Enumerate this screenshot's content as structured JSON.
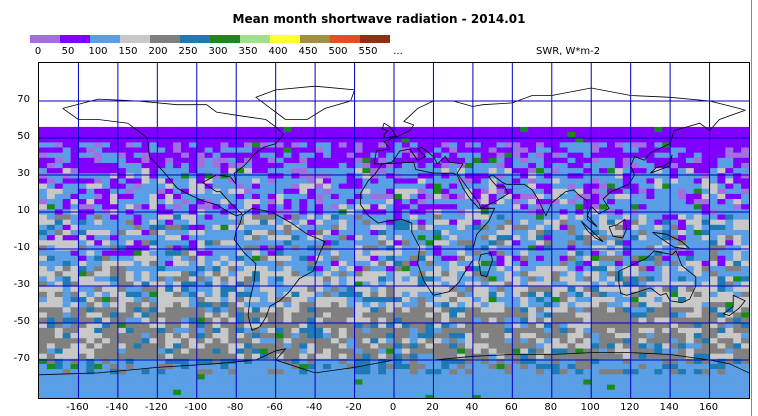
{
  "title": "Mean month shortwave radiation - 2014.01",
  "legend": {
    "units": "SWR, W*m-2",
    "labels": [
      "0",
      "50",
      "100",
      "150",
      "200",
      "250",
      "300",
      "350",
      "400",
      "450",
      "500",
      "550",
      "..."
    ],
    "colors": [
      "#a070e0",
      "#8000ff",
      "#5a9ee6",
      "#c8c8c8",
      "#808080",
      "#1e7ab4",
      "#1a8a1a",
      "#a0e088",
      "#ffff30",
      "#a09040",
      "#e05020",
      "#903010"
    ]
  },
  "map": {
    "y_ticks": [
      "70",
      "50",
      "30",
      "10",
      "-10",
      "-30",
      "-50",
      "-70"
    ],
    "x_ticks": [
      "-160",
      "-140",
      "-120",
      "-100",
      "-80",
      "-60",
      "-40",
      "-20",
      "0",
      "20",
      "40",
      "60",
      "80",
      "100",
      "120",
      "140",
      "160"
    ],
    "grid_color": "#0000c0"
  }
}
